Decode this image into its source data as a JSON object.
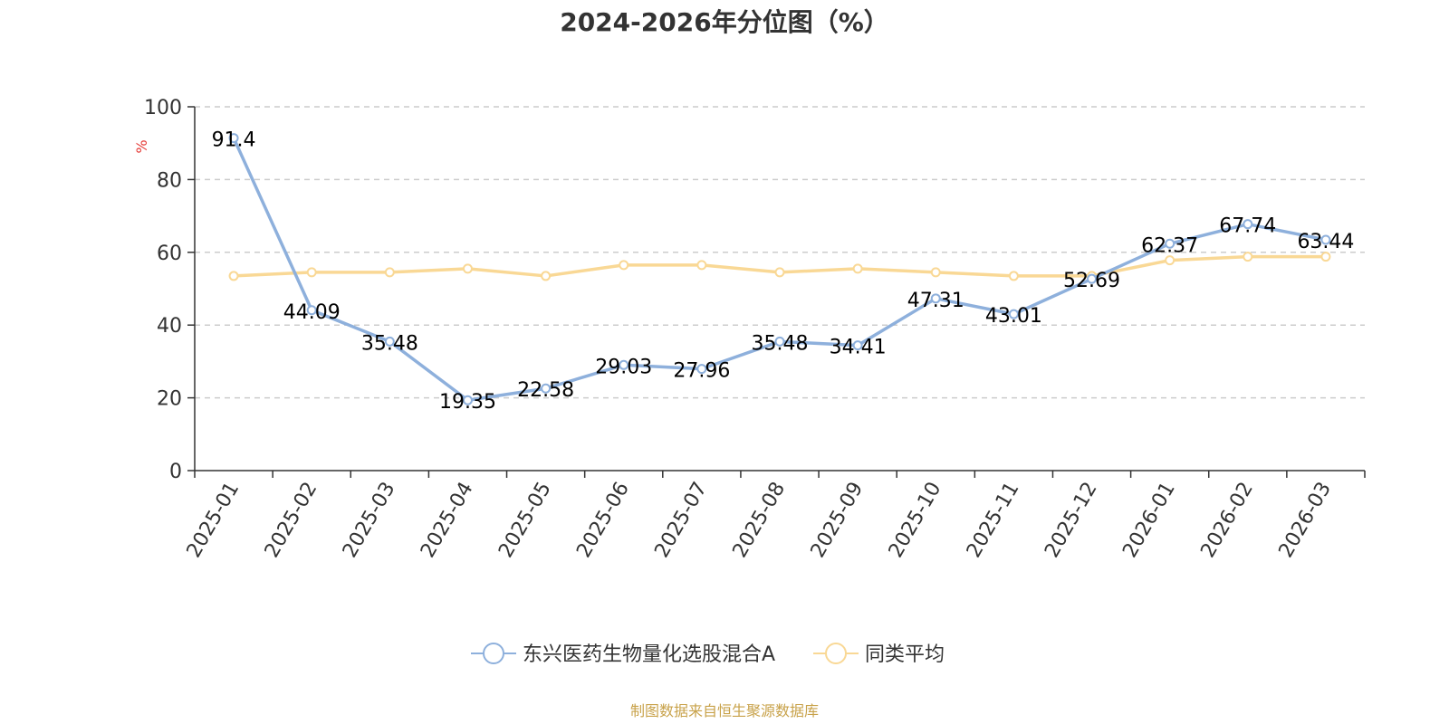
{
  "chart_data": {
    "type": "line",
    "title": "2024-2026年分位图（%）",
    "ylabel": "%",
    "ylim": [
      0,
      100
    ],
    "yticks": [
      0,
      20,
      40,
      60,
      80,
      100
    ],
    "grid": true,
    "legend_position": "bottom",
    "categories": [
      "2025-01",
      "2025-02",
      "2025-03",
      "2025-04",
      "2025-05",
      "2025-06",
      "2025-07",
      "2025-08",
      "2025-09",
      "2025-10",
      "2025-11",
      "2025-12",
      "2026-01",
      "2026-02",
      "2026-03"
    ],
    "series": [
      {
        "name": "东兴医药生物量化选股混合A",
        "color": "#8eb0dc",
        "values": [
          91.4,
          44.09,
          35.48,
          19.35,
          22.58,
          29.03,
          27.96,
          35.48,
          34.41,
          47.31,
          43.01,
          52.69,
          62.37,
          67.74,
          63.44
        ],
        "labels": [
          "91.4",
          "44.09",
          "35.48",
          "19.35",
          "22.58",
          "29.03",
          "27.96",
          "35.48",
          "34.41",
          "47.31",
          "43.01",
          "52.69",
          "62.37",
          "67.74",
          "63.44"
        ]
      },
      {
        "name": "同类平均",
        "color": "#f9d895",
        "values": [
          53.5,
          54.5,
          54.5,
          55.5,
          53.5,
          56.5,
          56.5,
          54.5,
          55.5,
          54.5,
          53.5,
          53.5,
          57.8,
          58.8,
          58.8
        ]
      }
    ],
    "unit_color": "#e53935",
    "source_color": "#c8a24a",
    "source": "制图数据来自恒生聚源数据库"
  }
}
